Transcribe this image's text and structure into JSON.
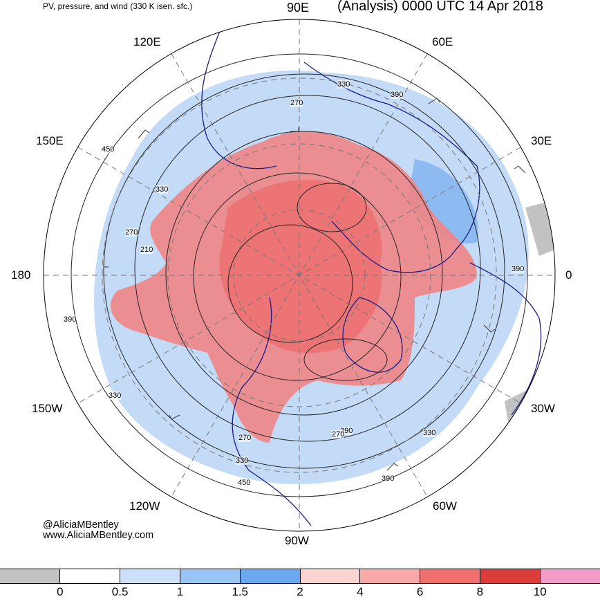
{
  "header": {
    "product": "PV, pressure, and wind (330 K isen. sfc.)",
    "valid": "(Analysis) 0000 UTC 14 Apr 2018"
  },
  "longitude_labels": {
    "lon_90e": "90E",
    "lon_60e": "60E",
    "lon_120e": "120E",
    "lon_150e": "150E",
    "lon_30e": "30E",
    "lon_180": "180",
    "lon_0": "0",
    "lon_150w": "150W",
    "lon_30w": "30W",
    "lon_120w": "120W",
    "lon_60w": "60W",
    "lon_90w": "90W"
  },
  "contour_labels": [
    "330",
    "270",
    "390",
    "450",
    "330",
    "270",
    "210",
    "390",
    "330",
    "270",
    "390",
    "330",
    "450",
    "270",
    "330",
    "390",
    "390"
  ],
  "credit": {
    "handle": "@AliciaMBentley",
    "site": "www.AliciaMBentley.com"
  },
  "colorbar": {
    "colors": [
      "#c2c2c2",
      "#ffffff",
      "#cce0fa",
      "#99c5f5",
      "#6aa9ef",
      "#fad4d0",
      "#f7aaa7",
      "#f07070",
      "#dd3c3c",
      "#f29ac8"
    ],
    "ticks": [
      "0",
      "0.5",
      "1",
      "1.5",
      "2",
      "4",
      "6",
      "8",
      "10"
    ]
  }
}
